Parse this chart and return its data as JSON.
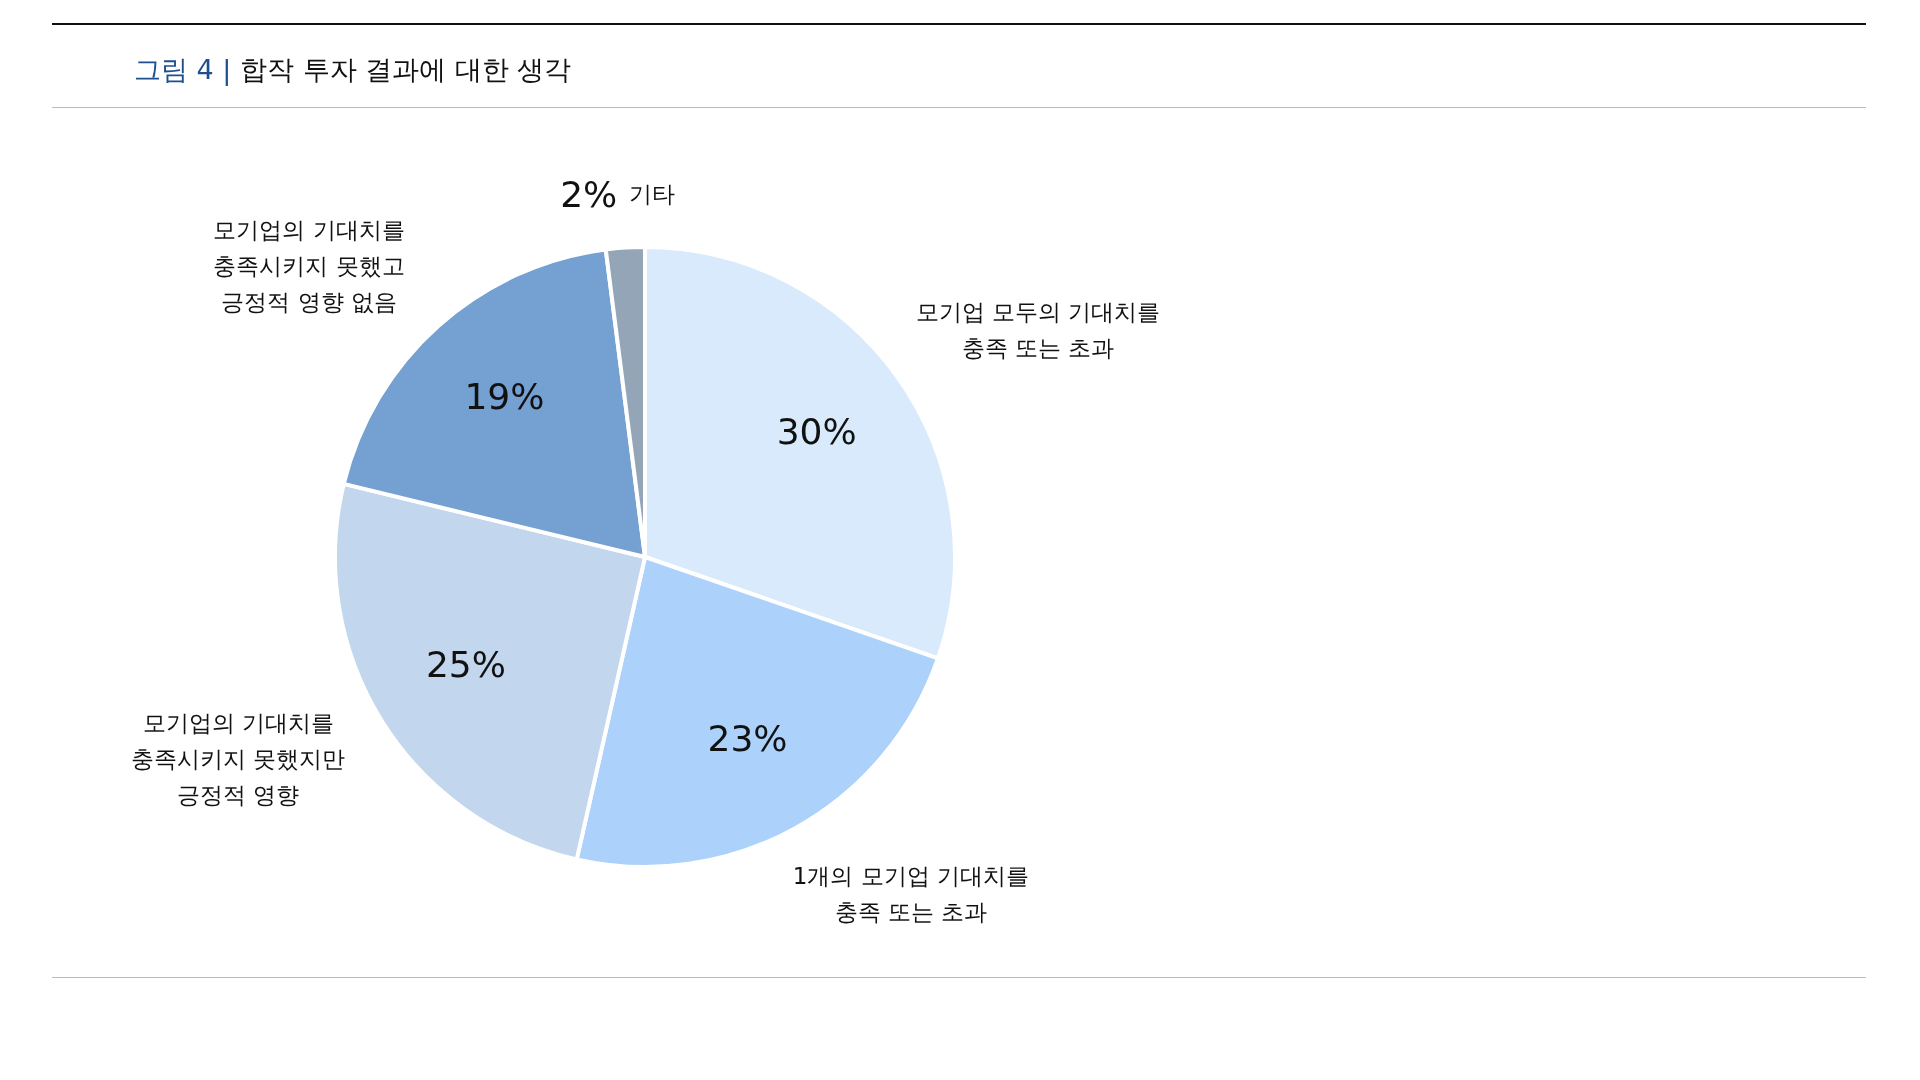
{
  "chart_data": {
    "type": "pie",
    "title": "그림 4 | 합작 투자 결과에 대한 생각",
    "categories": [
      "모기업 모두의 기대치를\n충족 또는 초과",
      "1개의 모기업 기대치를\n충족 또는 초과",
      "모기업의 기대치를\n충족시키지 못했지만\n긍정적 영향",
      "모기업의 기대치를\n충족시키지 못했고\n긍정적 영향 없음",
      "기타"
    ],
    "values": [
      30,
      23,
      25,
      19,
      2
    ],
    "colors": [
      "#d8eafb",
      "#acd2fb",
      "#c2d6ee",
      "#74a0d2",
      "#95a5b8"
    ],
    "value_labels": [
      "30%",
      "23%",
      "25%",
      "19%",
      "2%"
    ]
  }
}
